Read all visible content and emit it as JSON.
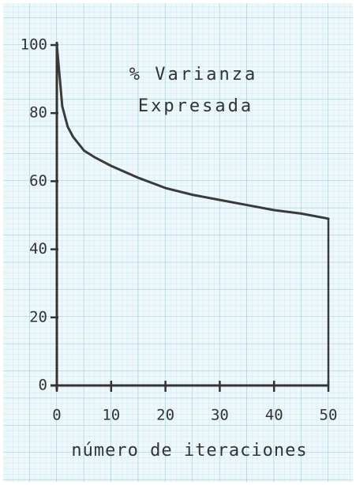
{
  "chart_data": {
    "type": "line",
    "title": [
      "% Varianza",
      "Expresada"
    ],
    "xlabel": "número de iteraciones",
    "x": [
      0,
      1,
      2,
      3,
      5,
      7,
      10,
      15,
      20,
      25,
      30,
      35,
      40,
      45,
      50
    ],
    "series": [
      {
        "name": "% Varianza Expresada",
        "color": "#3a3a3a",
        "values": [
          100,
          82,
          76,
          73,
          69,
          67,
          64.5,
          61,
          58,
          56,
          54.5,
          53,
          51.5,
          50.5,
          49
        ]
      }
    ],
    "xlim": [
      0,
      50
    ],
    "xticks": [
      0,
      10,
      20,
      30,
      40,
      50
    ],
    "ylim": [
      0,
      100
    ],
    "yticks": [
      0,
      20,
      40,
      60,
      80,
      100
    ],
    "grid": true
  }
}
